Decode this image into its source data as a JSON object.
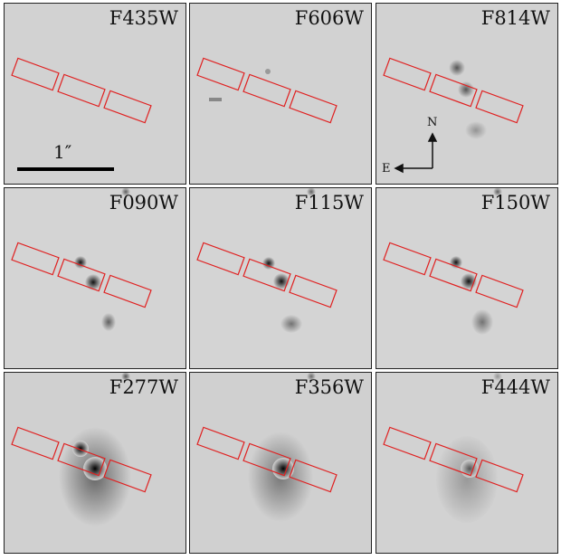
{
  "figure": {
    "panels": [
      {
        "filter": "F435W"
      },
      {
        "filter": "F606W"
      },
      {
        "filter": "F814W"
      },
      {
        "filter": "F090W"
      },
      {
        "filter": "F115W"
      },
      {
        "filter": "F150W"
      },
      {
        "filter": "F277W"
      },
      {
        "filter": "F356W"
      },
      {
        "filter": "F444W"
      }
    ],
    "scale_bar_label": "1″",
    "compass": {
      "north": "N",
      "east": "E"
    },
    "colors": {
      "slit_outline": "#e02020",
      "background": "#cfcfcf",
      "annotation": "#111111"
    }
  }
}
